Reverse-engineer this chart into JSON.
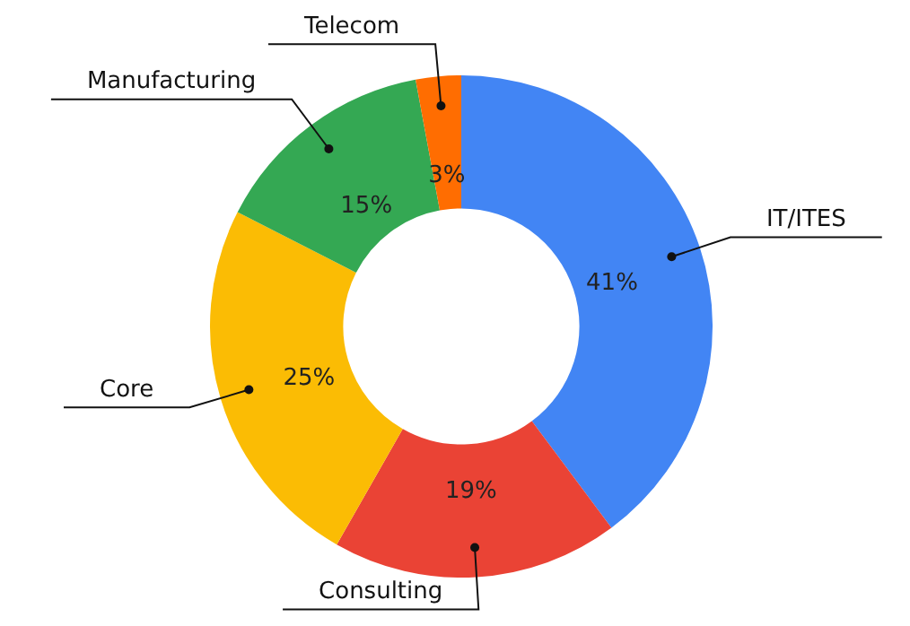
{
  "chart_data": {
    "type": "donut",
    "categories": [
      "IT/ITES",
      "Consulting",
      "Core",
      "Manufacturing",
      "Telecom"
    ],
    "values": [
      41,
      19,
      25,
      15,
      3
    ],
    "value_labels": [
      "41%",
      "19%",
      "25%",
      "15%",
      "3%"
    ],
    "colors": [
      "#4285f4",
      "#ea4335",
      "#fbbc04",
      "#34a853",
      "#ff6d01"
    ],
    "legend": false
  }
}
